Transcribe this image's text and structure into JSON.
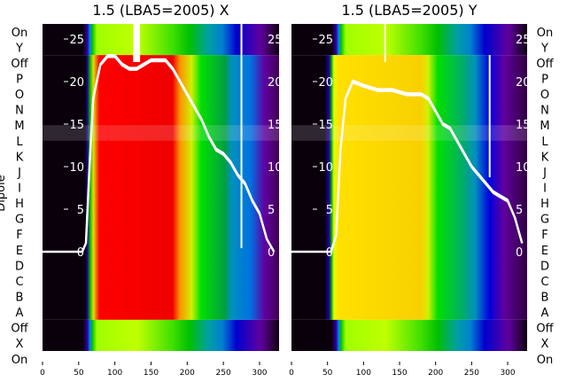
{
  "chart_data": [
    {
      "type": "heatmap",
      "title": "1.5 (LBA5=2005) X",
      "ylabel": "Dipole",
      "row_labels": [
        "On",
        "Y",
        "Off",
        "P",
        "O",
        "N",
        "M",
        "L",
        "K",
        "J",
        "I",
        "H",
        "G",
        "F",
        "E",
        "D",
        "C",
        "B",
        "A",
        "Off",
        "X",
        "On"
      ],
      "xticks": [
        0,
        50,
        100,
        150,
        200,
        250,
        300
      ],
      "xlim": [
        0,
        327
      ],
      "inner_yticks": [
        0,
        5,
        10,
        15,
        20,
        25
      ],
      "inner_ylim": [
        -2.5,
        27
      ],
      "overlay_line": {
        "color": "#ffffff",
        "x": [
          0,
          55,
          60,
          65,
          70,
          80,
          90,
          100,
          110,
          120,
          130,
          140,
          150,
          160,
          170,
          180,
          190,
          200,
          210,
          220,
          230,
          240,
          250,
          260,
          270,
          280,
          290,
          300,
          310,
          320
        ],
        "y": [
          0,
          0,
          1,
          10,
          18,
          22,
          23,
          23,
          22,
          21.5,
          21.5,
          22,
          22.5,
          22.5,
          22.5,
          21.5,
          20,
          18.5,
          17,
          15.5,
          13.5,
          12,
          11.5,
          10.5,
          9,
          8,
          6,
          4.5,
          1.5,
          0
        ]
      }
    },
    {
      "type": "heatmap",
      "title": "1.5 (LBA5=2005) Y",
      "row_labels": [
        "On",
        "Y",
        "Off",
        "P",
        "O",
        "N",
        "M",
        "L",
        "K",
        "J",
        "I",
        "H",
        "G",
        "F",
        "E",
        "D",
        "C",
        "B",
        "A",
        "Off",
        "X",
        "On"
      ],
      "xticks": [
        0,
        50,
        100,
        150,
        200,
        250,
        300
      ],
      "xlim": [
        0,
        327
      ],
      "inner_yticks": [
        0,
        5,
        10,
        15,
        20,
        25
      ],
      "inner_ylim": [
        -2.5,
        27
      ],
      "overlay_line": {
        "color": "#ffffff",
        "x": [
          0,
          55,
          62,
          68,
          75,
          85,
          100,
          120,
          140,
          160,
          180,
          190,
          200,
          210,
          220,
          230,
          240,
          250,
          260,
          270,
          280,
          290,
          300,
          310,
          320
        ],
        "y": [
          0,
          0,
          2,
          12,
          18,
          20,
          19.5,
          19,
          19,
          18.5,
          18.5,
          18,
          16.5,
          15,
          14.5,
          13,
          11.5,
          10,
          9,
          8,
          7,
          6.5,
          6,
          4,
          1
        ]
      }
    }
  ]
}
